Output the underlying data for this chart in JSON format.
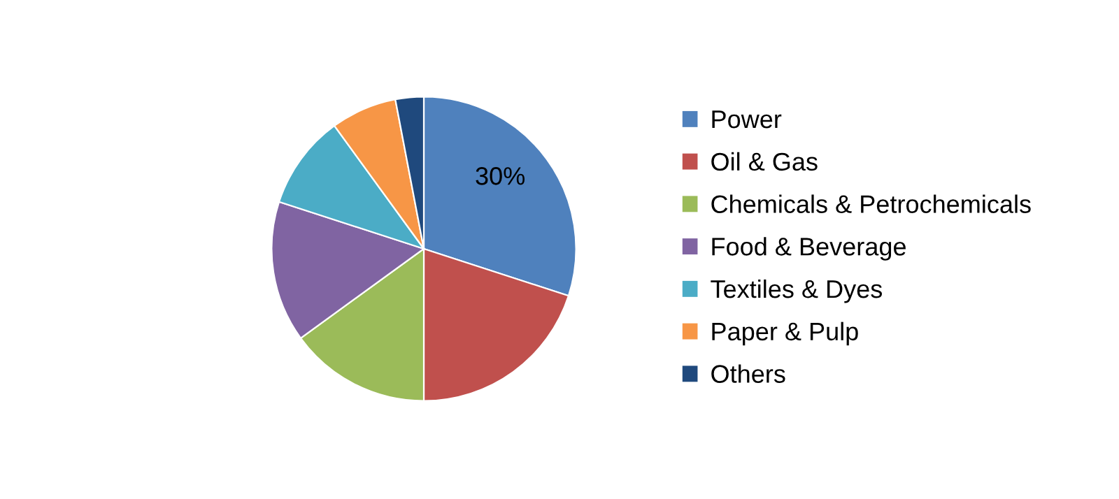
{
  "chart_data": {
    "type": "pie",
    "categories": [
      "Power",
      "Oil & Gas",
      "Chemicals & Petrochemicals",
      "Food & Beverage",
      "Textiles & Dyes",
      "Paper & Pulp",
      "Others"
    ],
    "values": [
      30,
      20,
      15,
      15,
      10,
      7,
      3
    ],
    "colors": [
      "#4f81bd",
      "#c0504d",
      "#9bbb59",
      "#8064a2",
      "#4bacc6",
      "#f79646",
      "#1f497d"
    ],
    "value_labels": [
      "30%",
      null,
      null,
      null,
      null,
      null,
      null
    ],
    "legend": "right"
  }
}
